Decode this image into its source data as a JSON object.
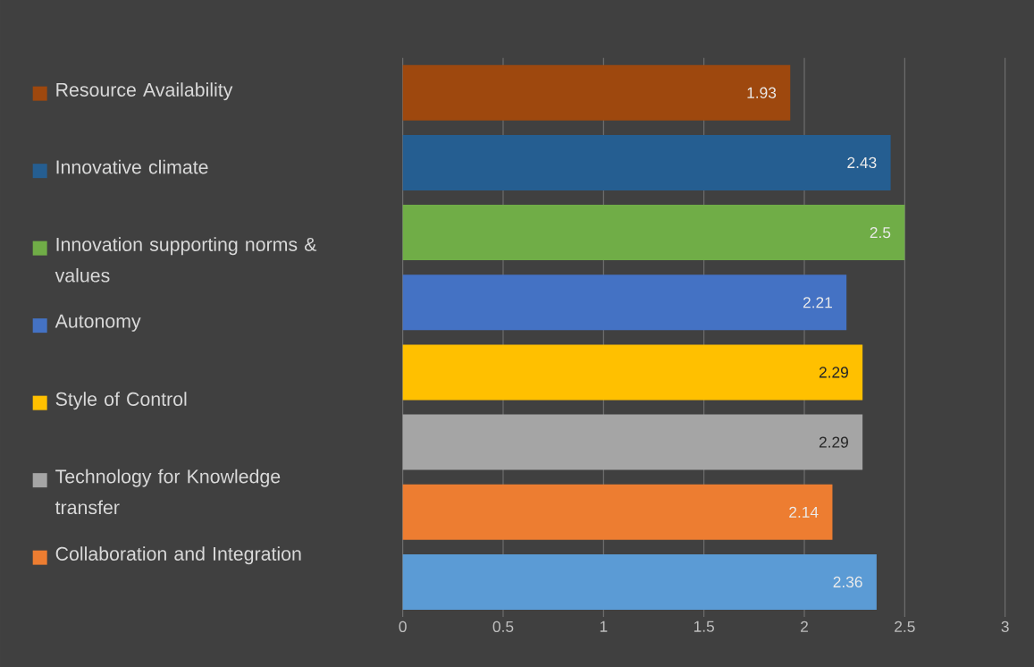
{
  "chart_data": {
    "type": "bar",
    "orientation": "horizontal",
    "categories": [
      null,
      null,
      null,
      null,
      null,
      null,
      null,
      null
    ],
    "series": [
      {
        "name": "Resource Availability",
        "color": "#9e480e",
        "values": [
          1.93,
          null,
          null,
          null,
          null,
          null,
          null,
          null
        ]
      },
      {
        "name": "Innovative climate",
        "color": "#255e91",
        "values": [
          null,
          2.43,
          null,
          null,
          null,
          null,
          null,
          null
        ]
      },
      {
        "name": "Innovation supporting norms & values",
        "color": "#70ad47",
        "values": [
          null,
          null,
          2.5,
          null,
          null,
          null,
          null,
          null
        ]
      },
      {
        "name": "Autonomy",
        "color": "#4472c4",
        "values": [
          null,
          null,
          null,
          2.21,
          null,
          null,
          null,
          null
        ]
      },
      {
        "name": "Style of Control",
        "color": "#ffc000",
        "values": [
          null,
          null,
          null,
          null,
          2.29,
          null,
          null,
          null
        ]
      },
      {
        "name": "Technology for Knowledge transfer",
        "color": "#a5a5a5",
        "values": [
          null,
          null,
          null,
          null,
          null,
          2.29,
          null,
          null
        ]
      },
      {
        "name": "Collaboration and Integration",
        "color": "#ed7d31",
        "values": [
          null,
          null,
          null,
          null,
          null,
          null,
          2.14,
          null
        ]
      },
      {
        "color": "#5b9bd5",
        "values": [
          null,
          null,
          null,
          null,
          null,
          null,
          null,
          2.36
        ]
      }
    ],
    "xlim": [
      0,
      3
    ],
    "xticks": [
      0,
      0.5,
      1,
      1.5,
      2,
      2.5,
      3
    ],
    "grid": "x",
    "data_labels": true,
    "legend": "left"
  }
}
